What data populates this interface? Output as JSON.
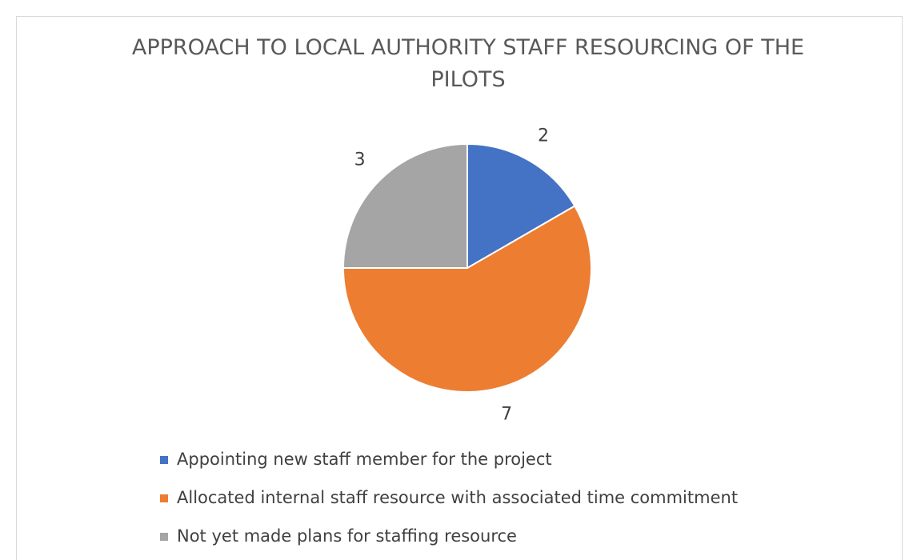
{
  "chart_data": {
    "type": "pie",
    "title": "APPROACH TO LOCAL AUTHORITY STAFF RESOURCING OF THE PILOTS",
    "categories": [
      "Appointing new staff member for the project",
      "Allocated internal staff resource with associated time commitment",
      "Not yet made plans for staffing resource"
    ],
    "values": [
      2,
      7,
      3
    ],
    "colors": [
      "#4472c4",
      "#ed7d31",
      "#a5a5a5"
    ],
    "legend": "bottom"
  }
}
